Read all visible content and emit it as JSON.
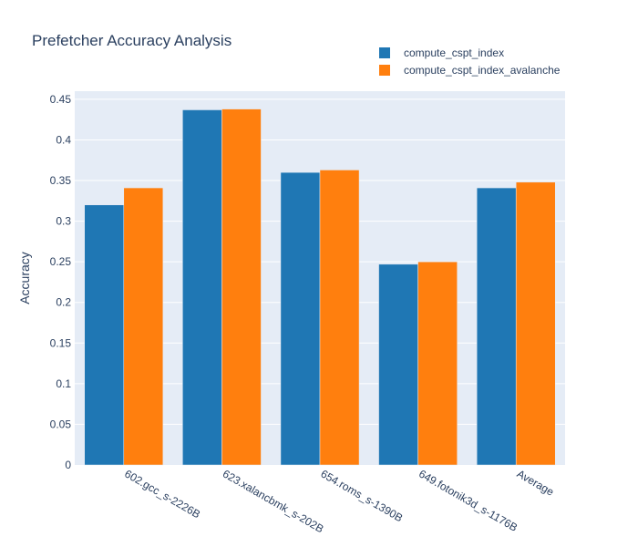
{
  "chart_data": {
    "type": "bar",
    "title": "Prefetcher Accuracy Analysis",
    "xlabel": "",
    "ylabel": "Accuracy",
    "categories": [
      "602.gcc_s-2226B",
      "623.xalancbmk_s-202B",
      "654.roms_s-1390B",
      "649.fotonik3d_s-1176B",
      "Average"
    ],
    "series": [
      {
        "name": "compute_cspt_index",
        "color": "#1f77b4",
        "values": [
          0.32,
          0.437,
          0.36,
          0.247,
          0.341
        ]
      },
      {
        "name": "compute_cspt_index_avalanche",
        "color": "#ff7f0e",
        "values": [
          0.341,
          0.438,
          0.363,
          0.25,
          0.348
        ]
      }
    ],
    "ylim": [
      0,
      0.46
    ],
    "yticks": [
      0,
      0.05,
      0.1,
      0.15,
      0.2,
      0.25,
      0.3,
      0.35,
      0.4,
      0.45
    ],
    "ytick_labels": [
      "0",
      "0.05",
      "0.1",
      "0.15",
      "0.2",
      "0.25",
      "0.3",
      "0.35",
      "0.4",
      "0.45"
    ],
    "grid": true,
    "legend": "top-right",
    "plot_bg": "#e5ecf6"
  }
}
